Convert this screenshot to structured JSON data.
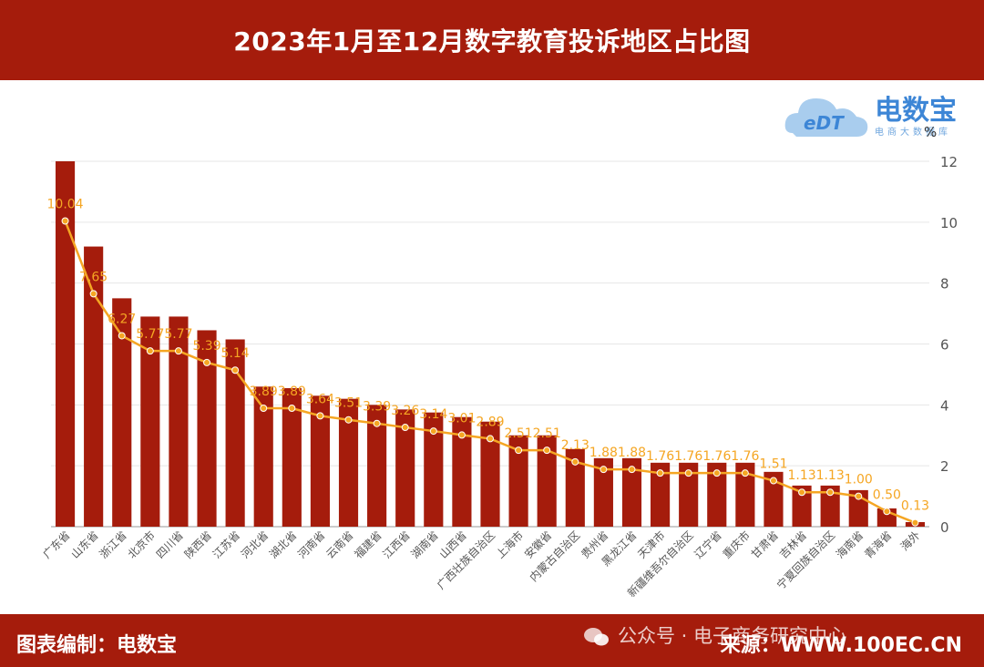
{
  "header": {
    "title": "2023年1月至12月数字教育投诉地区占比图"
  },
  "logo": {
    "name": "电数宝",
    "icon_text": "eDT",
    "subtitle": "电商大数据库"
  },
  "footer": {
    "credit": "图表编制：电数宝",
    "watermark": "公众号 · 电子商务研究中心",
    "source": "来源：WWW.100EC.CN"
  },
  "colors": {
    "bar": "#a51c0c",
    "line": "#f5a623",
    "banner": "#a51c0c",
    "logo": "#3d86d6"
  },
  "chart_data": {
    "type": "bar",
    "title": "2023年1月至12月数字教育投诉地区占比图",
    "y_unit": "%",
    "ylim": [
      0,
      12
    ],
    "y_ticks": [
      0,
      2,
      4,
      6,
      8,
      10,
      12
    ],
    "y_axis_position": "right",
    "grid": true,
    "categories": [
      "广东省",
      "山东省",
      "浙江省",
      "北京市",
      "四川省",
      "陕西省",
      "江苏省",
      "河北省",
      "湖北省",
      "河南省",
      "云南省",
      "福建省",
      "江西省",
      "湖南省",
      "山西省",
      "广西壮族自治区",
      "上海市",
      "安徽省",
      "内蒙古自治区",
      "贵州省",
      "黑龙江省",
      "天津市",
      "新疆维吾尔自治区",
      "辽宁省",
      "重庆市",
      "甘肃省",
      "吉林省",
      "宁夏回族自治区",
      "海南省",
      "青海省",
      "海外"
    ],
    "series": [
      {
        "values": [
          12.0,
          9.2,
          7.5,
          6.9,
          6.9,
          6.45,
          6.15,
          4.6,
          4.55,
          4.3,
          4.2,
          4.0,
          3.85,
          3.75,
          3.6,
          3.45,
          3.0,
          3.0,
          2.55,
          2.25,
          2.25,
          2.1,
          2.1,
          2.1,
          2.1,
          1.8,
          1.35,
          1.35,
          1.2,
          0.6,
          0.15
        ]
      },
      {
        "values": [
          10.04,
          7.65,
          6.27,
          5.77,
          5.77,
          5.39,
          5.14,
          3.89,
          3.89,
          3.64,
          3.51,
          3.39,
          3.26,
          3.14,
          3.01,
          2.89,
          2.51,
          2.51,
          2.13,
          1.88,
          1.88,
          1.76,
          1.76,
          1.76,
          1.76,
          1.51,
          1.13,
          1.13,
          1.0,
          0.5,
          0.13
        ],
        "labels": [
          "10.04",
          "7.65",
          "6.27",
          "5.77",
          "5.77",
          "5.39",
          "5.14",
          "3.89",
          "3.89",
          "3.64",
          "3.51",
          "3.39",
          "3.26",
          "3.14",
          "3.01",
          "2.89",
          "2.51",
          "2.51",
          "2.13",
          "1.88",
          "1.88",
          "1.76",
          "1.76",
          "1.76",
          "1.76",
          "1.51",
          "1.13",
          "1.13",
          "1.00",
          "0.50",
          "0.13"
        ]
      }
    ]
  }
}
